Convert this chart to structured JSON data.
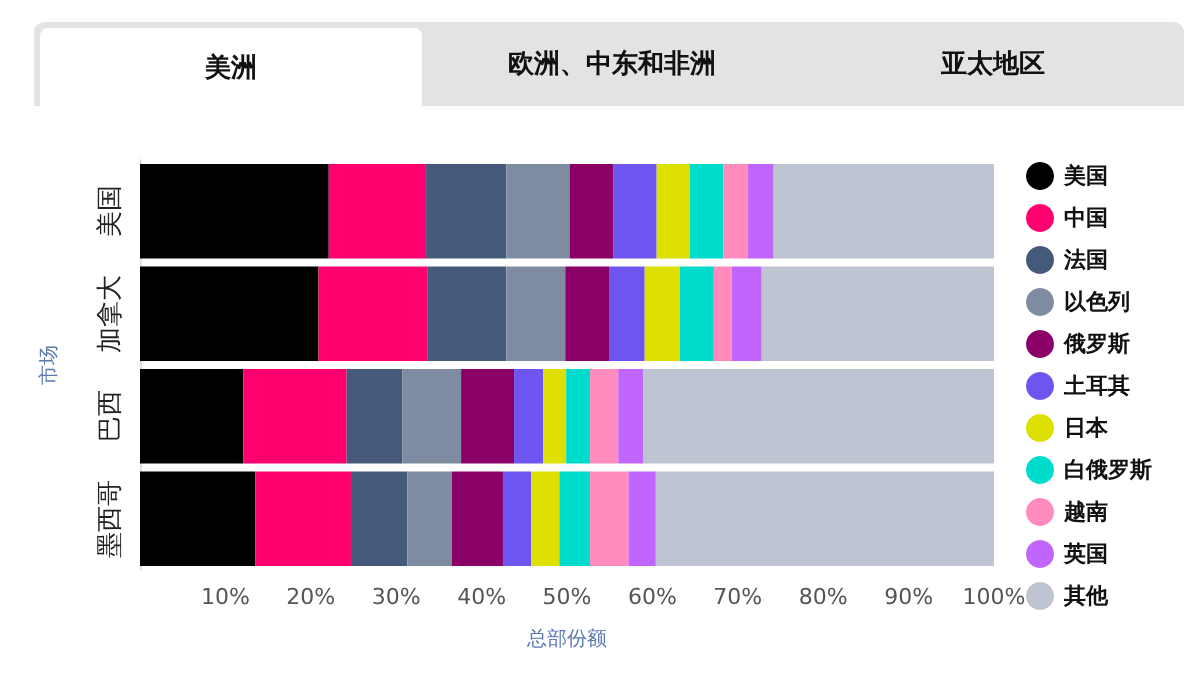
{
  "chart_data": {
    "type": "bar",
    "orientation": "horizontal",
    "stacked": true,
    "xlabel": "总部份额",
    "ylabel": "市场",
    "annotations": [
      "美洲",
      "欧洲、中东和非洲",
      "亚太地区"
    ],
    "categories": [
      "美国",
      "加拿大",
      "巴西",
      "墨西哥"
    ],
    "xlim": [
      0,
      100
    ],
    "xticks": [
      {
        "value": 10,
        "label": "10%"
      },
      {
        "value": 20,
        "label": "20%"
      },
      {
        "value": 30,
        "label": "30%"
      },
      {
        "value": 40,
        "label": "40%"
      },
      {
        "value": 50,
        "label": "50%"
      },
      {
        "value": 60,
        "label": "60%"
      },
      {
        "value": 70,
        "label": "70%"
      },
      {
        "value": 80,
        "label": "80%"
      },
      {
        "value": 90,
        "label": "90%"
      },
      {
        "value": 100,
        "label": "100%"
      }
    ],
    "grid": false,
    "legend": "right",
    "marker": "circle",
    "series": [
      {
        "name": "美国",
        "color": "#000000",
        "values": [
          22.1,
          20.9,
          12.1,
          13.5
        ]
      },
      {
        "name": "中国",
        "color": "#ff006e",
        "values": [
          11.4,
          12.8,
          12.1,
          11.2
        ]
      },
      {
        "name": "法国",
        "color": "#455a7a",
        "values": [
          9.4,
          9.2,
          6.5,
          6.6
        ]
      },
      {
        "name": "以色列",
        "color": "#7f8ba0",
        "values": [
          7.4,
          6.9,
          6.9,
          5.2
        ]
      },
      {
        "name": "俄罗斯",
        "color": "#8b0066",
        "values": [
          5.1,
          5.2,
          6.2,
          6.0
        ]
      },
      {
        "name": "土耳其",
        "color": "#6f55f0",
        "values": [
          5.1,
          4.1,
          3.4,
          3.3
        ]
      },
      {
        "name": "日本",
        "color": "#dde000",
        "values": [
          3.9,
          4.1,
          2.7,
          3.3
        ]
      },
      {
        "name": "白俄罗斯",
        "color": "#00dccb",
        "values": [
          3.9,
          4.0,
          2.8,
          3.6
        ]
      },
      {
        "name": "越南",
        "color": "#ff8cbd",
        "values": [
          2.9,
          2.1,
          3.3,
          4.5
        ]
      },
      {
        "name": "英国",
        "color": "#c066ff",
        "values": [
          3.0,
          3.5,
          2.9,
          3.2
        ]
      },
      {
        "name": "其他",
        "color": "#bfc4d2",
        "values": [
          25.8,
          27.2,
          41.1,
          39.6
        ]
      }
    ]
  }
}
